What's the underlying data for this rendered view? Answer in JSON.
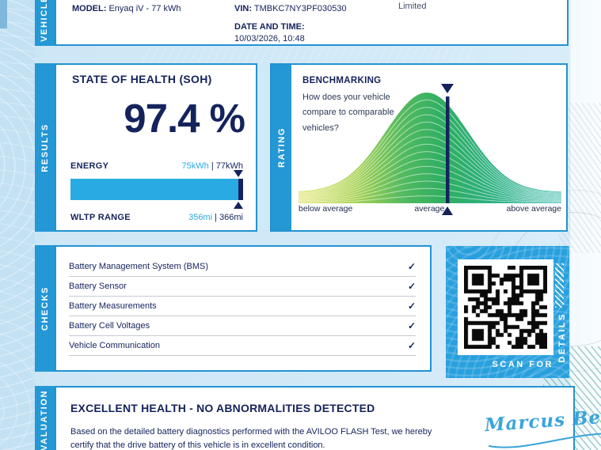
{
  "vehicle": {
    "tab": "VEHICLE",
    "model_label": "MODEL:",
    "model_value": "Enyaq iV - 77 kWh",
    "vin_label": "VIN:",
    "vin_value": "TMBKC7NY3PF030530",
    "datetime_label": "DATE AND TIME:",
    "datetime_value": "10/03/2026, 10:48",
    "limited_text": "Limited"
  },
  "results": {
    "tab": "RESULTS",
    "title": "STATE OF HEALTH (SOH)",
    "soh_value": "97.4 %",
    "energy_label": "ENERGY",
    "energy_current": "75kWh",
    "energy_separator": " | ",
    "energy_original": "77kWh",
    "energy_percent": 97.4,
    "wltp_label": "WLTP RANGE",
    "wltp_current": "356mi",
    "wltp_original": "366mi"
  },
  "rating": {
    "tab": "RATING",
    "title": "BENCHMARKING",
    "subtitle": "How does your vehicle compare to comparable vehicles?",
    "axis_label_left": "below average",
    "axis_label_center": "average",
    "axis_label_right": "above average",
    "chart": {
      "type": "area",
      "description": "bell-curve distribution of comparable vehicles, gradient yellow-green to teal",
      "marker_position_percent": 57,
      "marker_meaning": "this vehicle, slightly above average"
    }
  },
  "checks": {
    "tab": "CHECKS",
    "check_glyph": "✓",
    "items": [
      "Battery Management System (BMS)",
      "Battery Sensor",
      "Battery Measurements",
      "Battery Cell Voltages",
      "Vehicle Communication"
    ]
  },
  "qr": {
    "scan_for": "SCAN FOR",
    "details": "DETAILS"
  },
  "evaluation": {
    "tab": "EVALUATION",
    "title": "EXCELLENT HEALTH - NO ABNORMALITIES DETECTED",
    "body": "Based on the detailed battery diagnostics performed with the AVILOO FLASH Test, we hereby certify that the drive battery of this vehicle is in excellent condition.",
    "signature": "Marcus Berger"
  },
  "colors": {
    "navy": "#14235c",
    "tab_blue": "#2497d5",
    "accent_blue": "#2aaae2",
    "panel_border": "#2392d1",
    "qr_panel_blue": "#29a0de",
    "curve_yellow": "#d7e04b",
    "curve_green": "#2fae62",
    "curve_teal": "#2db4a6",
    "signature_blue": "#3aa4d9"
  }
}
